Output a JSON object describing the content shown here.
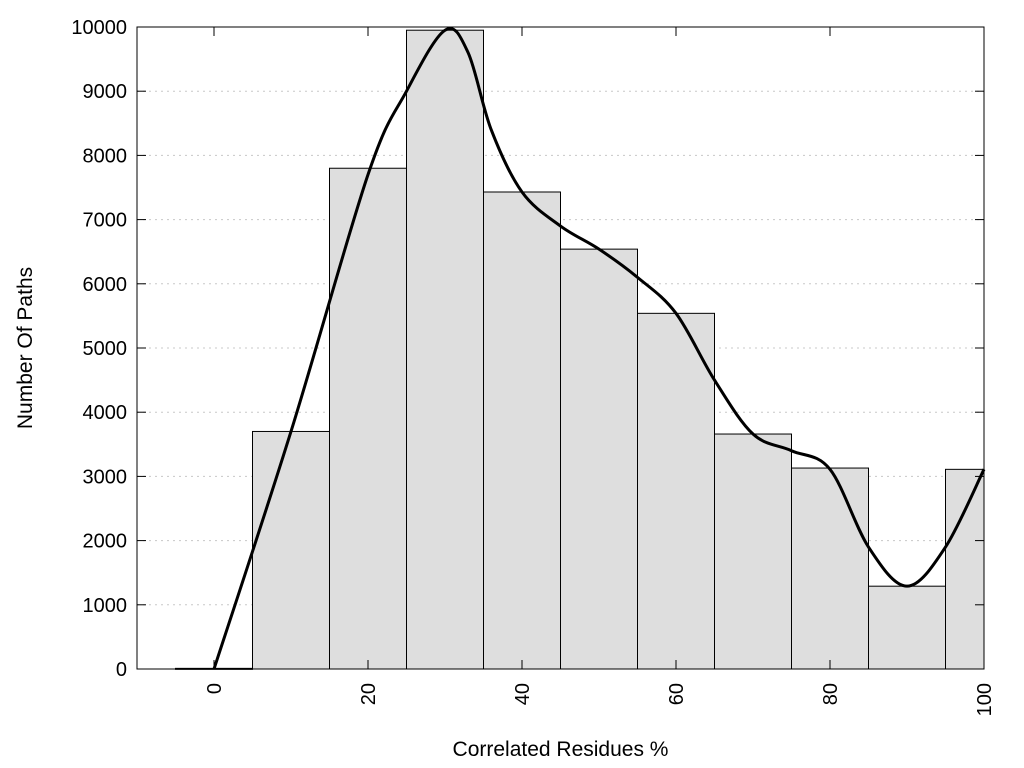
{
  "chart_data": {
    "type": "bar",
    "xlabel": "Correlated Residues %",
    "ylabel": "Number Of Paths",
    "xlim": [
      -10,
      100
    ],
    "ylim": [
      0,
      10000
    ],
    "x_ticks": [
      0,
      20,
      40,
      60,
      80,
      100
    ],
    "y_ticks": [
      0,
      1000,
      2000,
      3000,
      4000,
      5000,
      6000,
      7000,
      8000,
      9000,
      10000
    ],
    "grid": "horizontal dotted",
    "bin_width": 10,
    "bars": [
      {
        "x": 0,
        "value": 10
      },
      {
        "x": 10,
        "value": 3700
      },
      {
        "x": 20,
        "value": 7800
      },
      {
        "x": 30,
        "value": 9950
      },
      {
        "x": 40,
        "value": 7430
      },
      {
        "x": 50,
        "value": 6540
      },
      {
        "x": 60,
        "value": 5540
      },
      {
        "x": 70,
        "value": 3660
      },
      {
        "x": 80,
        "value": 3130
      },
      {
        "x": 90,
        "value": 1290
      },
      {
        "x": 100,
        "value": 3110
      }
    ],
    "curve": {
      "x": [
        0,
        10,
        20,
        25,
        30,
        33,
        36,
        40,
        45,
        50,
        55,
        60,
        65,
        70,
        75,
        80,
        85,
        90,
        95,
        100
      ],
      "y": [
        0,
        3700,
        7700,
        9000,
        9950,
        9600,
        8400,
        7430,
        6900,
        6540,
        6100,
        5540,
        4500,
        3660,
        3400,
        3110,
        1900,
        1290,
        1900,
        3110
      ]
    }
  }
}
